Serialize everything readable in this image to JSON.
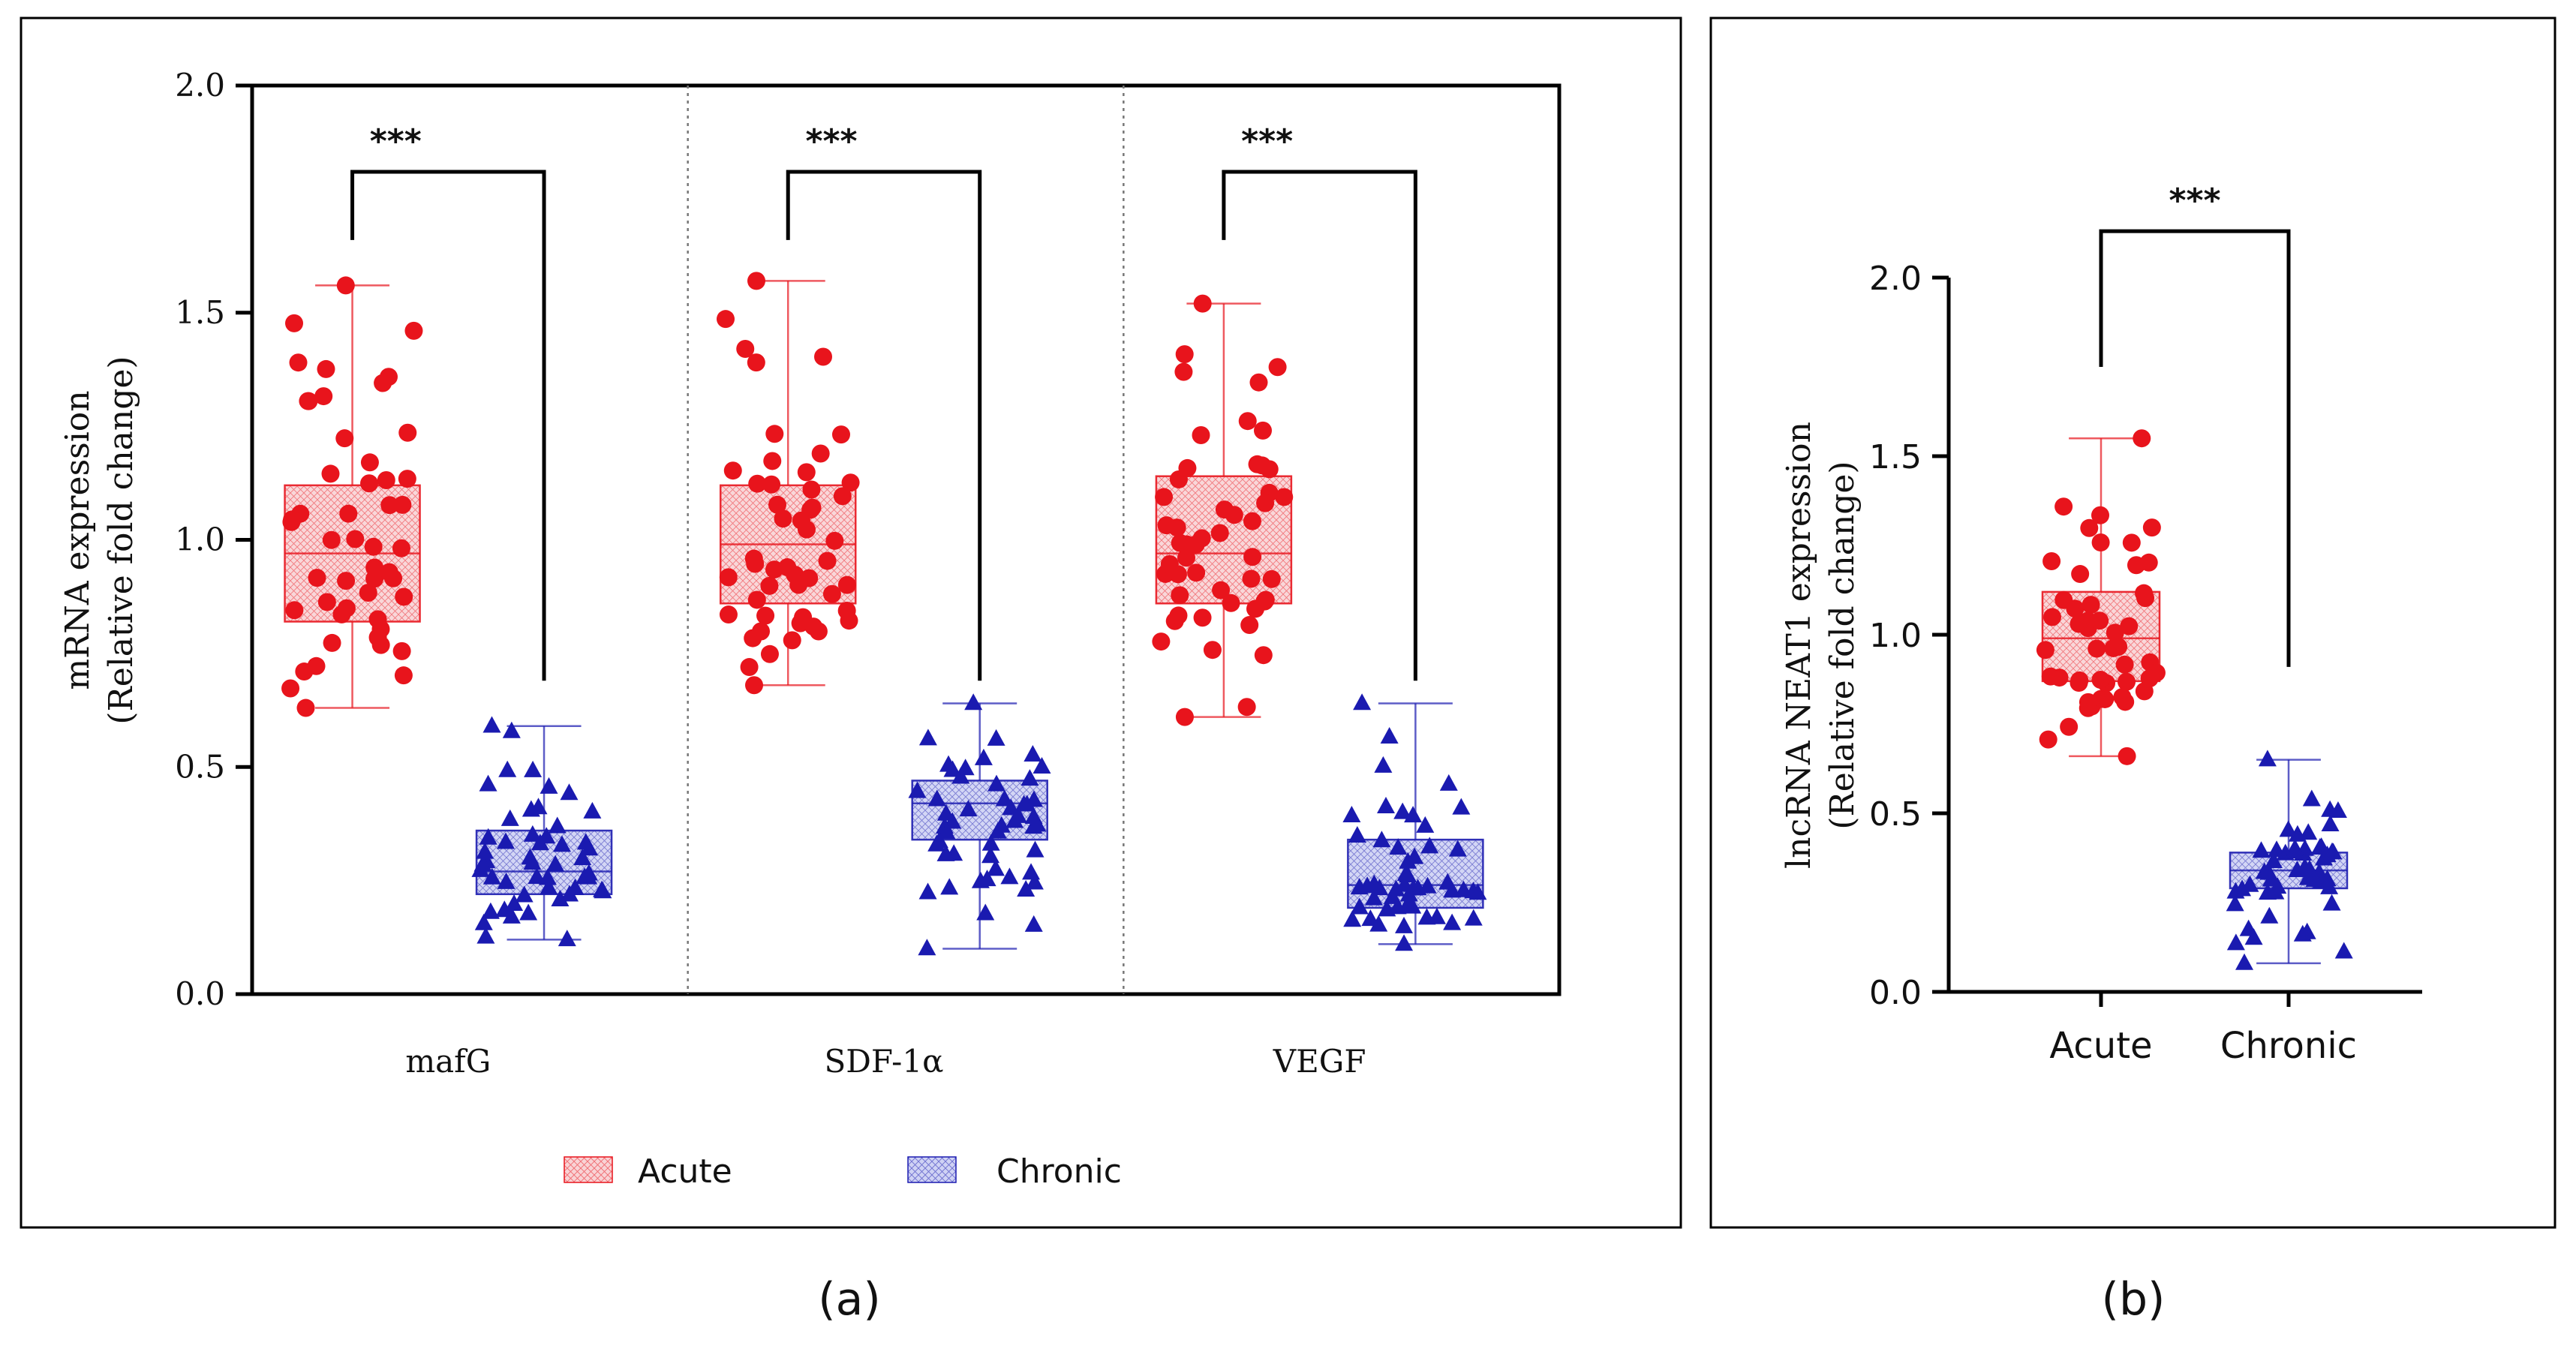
{
  "colors": {
    "acute": "#e8141c",
    "acute_fill": "#f7c3c5",
    "chronic": "#1a1ab0",
    "chronic_fill": "#c3c6ef"
  },
  "panel_labels": {
    "a": "(a)",
    "b": "(b)"
  },
  "chart_data": [
    {
      "type": "box",
      "panel": "a",
      "ylabel_line1": "mRNA expression",
      "ylabel_line2": "(Relative fold change)",
      "ylim": [
        0,
        2.0
      ],
      "yticks": [
        "0.0",
        "0.5",
        "1.0",
        "1.5",
        "2.0"
      ],
      "categories": [
        "mafG",
        "SDF-1α",
        "VEGF"
      ],
      "significance": [
        "***",
        "***",
        "***"
      ],
      "legend": [
        "Acute",
        "Chronic"
      ],
      "groups": [
        {
          "category": "mafG",
          "acute": {
            "min": 0.63,
            "q1": 0.82,
            "median": 0.97,
            "q3": 1.12,
            "max": 1.56,
            "n": 50
          },
          "chronic": {
            "min": 0.12,
            "q1": 0.22,
            "median": 0.27,
            "q3": 0.36,
            "max": 0.59,
            "n": 50
          }
        },
        {
          "category": "SDF-1α",
          "acute": {
            "min": 0.68,
            "q1": 0.86,
            "median": 0.99,
            "q3": 1.12,
            "max": 1.57,
            "n": 50
          },
          "chronic": {
            "min": 0.1,
            "q1": 0.34,
            "median": 0.42,
            "q3": 0.47,
            "max": 0.64,
            "n": 50
          }
        },
        {
          "category": "VEGF",
          "acute": {
            "min": 0.61,
            "q1": 0.86,
            "median": 0.97,
            "q3": 1.14,
            "max": 1.52,
            "n": 50
          },
          "chronic": {
            "min": 0.11,
            "q1": 0.19,
            "median": 0.24,
            "q3": 0.34,
            "max": 0.64,
            "n": 50
          }
        }
      ]
    },
    {
      "type": "box",
      "panel": "b",
      "ylabel_line1": "lncRNA NEAT1 expression",
      "ylabel_line2": "(Relative fold change)",
      "ylim": [
        0,
        2.0
      ],
      "yticks": [
        "0.0",
        "0.5",
        "1.0",
        "1.5",
        "2.0"
      ],
      "categories": [
        "Acute",
        "Chronic"
      ],
      "significance": "***",
      "groups": [
        {
          "category": "Acute",
          "stats": {
            "min": 0.66,
            "q1": 0.87,
            "median": 0.99,
            "q3": 1.12,
            "max": 1.55,
            "n": 50
          }
        },
        {
          "category": "Chronic",
          "stats": {
            "min": 0.08,
            "q1": 0.29,
            "median": 0.34,
            "q3": 0.39,
            "max": 0.65,
            "n": 50
          }
        }
      ]
    }
  ]
}
